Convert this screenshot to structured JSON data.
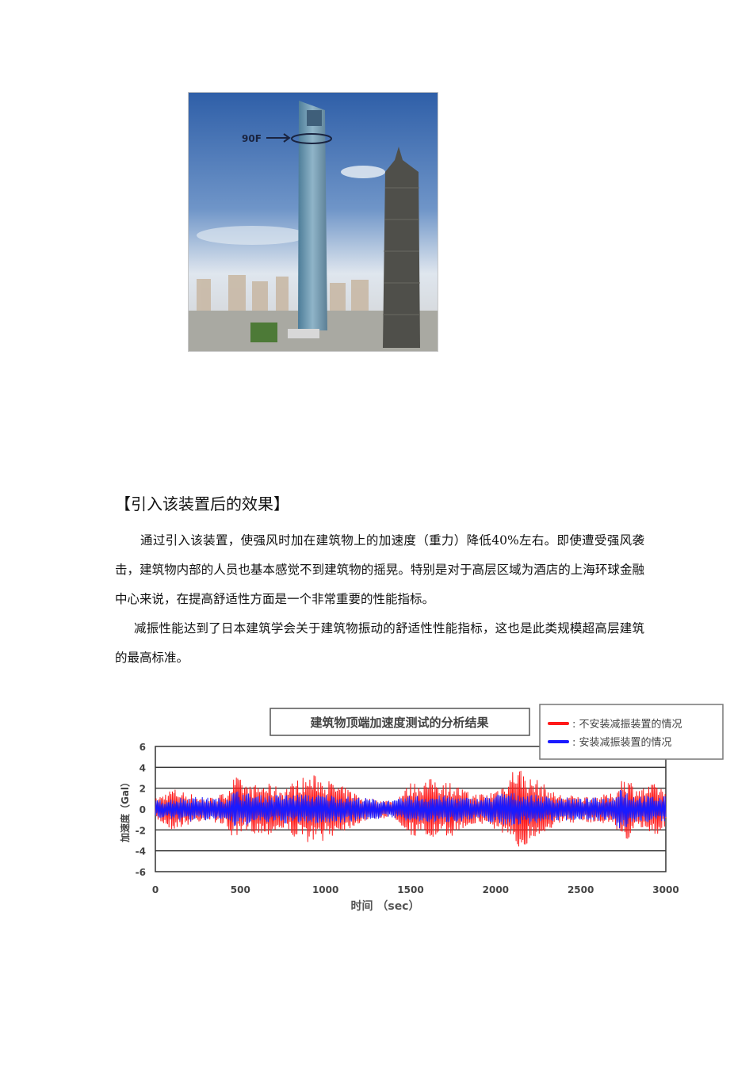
{
  "photo": {
    "floor_label": "90F"
  },
  "heading": "【引入该装置后的效果】",
  "paragraphs": [
    "通过引入该装置，使强风时加在建筑物上的加速度（重力）降低40%左右。即使遭受强风袭击，建筑物内部的人员也基本感觉不到建筑物的摇晃。特别是对于高层区域为酒店的上海环球金融中心来说，在提高舒适性方面是一个非常重要的性能指标。",
    "减振性能达到了日本建筑学会关于建筑物振动的舒适性性能指标，这也是此类规模超高层建筑的最高标准。"
  ],
  "chart_data": {
    "type": "line",
    "title": "建筑物顶端加速度测试的分析结果",
    "xlabel": "时间 （sec）",
    "ylabel": "加速度（Gal）",
    "xlim": [
      0,
      3000
    ],
    "ylim": [
      -6,
      6
    ],
    "xticks": [
      "0",
      "500",
      "1000",
      "1500",
      "2000",
      "2500",
      "3000"
    ],
    "yticks": [
      "6",
      "4",
      "2",
      "0",
      "-2",
      "-4",
      "-6"
    ],
    "grid": "horizontal",
    "legend_position": "top-right",
    "series": [
      {
        "name": "不安装减振装置的情况",
        "color": "#ff1a1a",
        "envelope_t": [
          0,
          100,
          200,
          300,
          400,
          470,
          550,
          650,
          750,
          850,
          950,
          1050,
          1150,
          1250,
          1400,
          1500,
          1650,
          1750,
          1850,
          1950,
          2050,
          2120,
          2200,
          2250,
          2350,
          2500,
          2600,
          2700,
          2750,
          2850,
          2950,
          3000
        ],
        "envelope_amp": [
          1,
          2,
          1.5,
          1,
          1.5,
          3.2,
          2.2,
          2.5,
          2,
          3,
          3.3,
          2.5,
          1.8,
          1,
          0.8,
          2.5,
          3,
          2.5,
          1.5,
          1.5,
          2.5,
          4.4,
          3,
          2.8,
          1.5,
          1.2,
          1.3,
          1.5,
          3.3,
          2,
          2.5,
          1.8
        ]
      },
      {
        "name": "安装减振装置的情况",
        "color": "#1a1aff",
        "envelope_t": [
          0,
          200,
          400,
          470,
          600,
          800,
          1000,
          1200,
          1400,
          1500,
          1700,
          1900,
          2050,
          2150,
          2300,
          2500,
          2700,
          2720,
          2800,
          3000
        ],
        "envelope_amp": [
          0.8,
          1.2,
          1,
          1.8,
          1.3,
          1.4,
          1.4,
          1.1,
          0.8,
          1.3,
          1.3,
          1,
          1.6,
          1.5,
          1.2,
          1,
          1.2,
          2.5,
          1.3,
          1.2
        ]
      }
    ]
  }
}
